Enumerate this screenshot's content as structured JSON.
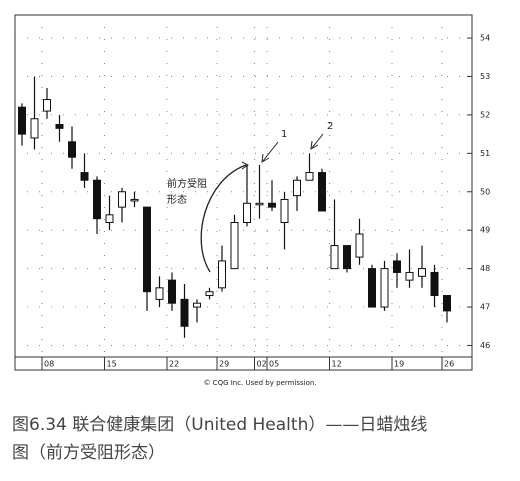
{
  "chart_data": {
    "type": "candlestick",
    "categories": [
      null,
      null,
      "08",
      null,
      null,
      null,
      null,
      "15",
      null,
      null,
      null,
      null,
      "22",
      null,
      null,
      null,
      "29",
      null,
      null,
      "02",
      "05",
      null,
      null,
      null,
      null,
      "12",
      null,
      null,
      null,
      null,
      "19",
      null,
      null,
      null,
      "26"
    ],
    "open": [
      52.2,
      51.4,
      52.1,
      51.75,
      51.3,
      50.5,
      50.3,
      49.2,
      49.6,
      49.8,
      49.6,
      47.2,
      47.7,
      47.2,
      47.0,
      47.3,
      47.5,
      48.0,
      49.2,
      49.7,
      49.7,
      49.2,
      49.9,
      50.3,
      50.5,
      48.0,
      48.6,
      48.3,
      48.0,
      47.0,
      48.2,
      47.7,
      47.8,
      47.9,
      47.3
    ],
    "high": [
      52.3,
      53.0,
      52.7,
      52.0,
      51.7,
      51.0,
      50.4,
      49.9,
      50.1,
      50.0,
      49.6,
      47.8,
      47.9,
      47.6,
      47.2,
      47.5,
      48.6,
      49.4,
      50.7,
      50.7,
      50.3,
      50.0,
      50.4,
      51.0,
      50.6,
      49.8,
      48.6,
      49.3,
      48.1,
      48.2,
      48.4,
      48.5,
      48.6,
      48.1,
      47.3
    ],
    "low": [
      51.2,
      51.1,
      51.9,
      51.3,
      50.6,
      50.1,
      48.9,
      49.0,
      49.2,
      49.6,
      46.9,
      47.0,
      46.9,
      46.2,
      46.6,
      47.2,
      47.4,
      48.0,
      49.1,
      49.3,
      49.5,
      48.5,
      49.5,
      50.3,
      49.5,
      48.0,
      47.9,
      48.1,
      47.0,
      46.9,
      47.5,
      47.5,
      47.5,
      47.0,
      46.6
    ],
    "close": [
      51.5,
      51.9,
      52.4,
      51.65,
      50.9,
      50.3,
      49.3,
      49.4,
      50.0,
      49.8,
      47.4,
      47.5,
      47.1,
      46.5,
      47.1,
      47.4,
      48.2,
      49.2,
      49.7,
      49.7,
      49.6,
      49.8,
      50.3,
      50.5,
      49.5,
      48.6,
      48.0,
      48.9,
      47.0,
      48.0,
      47.9,
      47.9,
      48.0,
      47.3,
      46.9
    ],
    "up_color": "#ffffff",
    "down_color": "#111111",
    "ylim": [
      45.7,
      54.6
    ],
    "yticks": [
      46,
      47,
      48,
      49,
      50,
      51,
      52,
      53,
      54
    ],
    "grid": true,
    "annotations": [
      "前方受阻",
      "形态",
      "1",
      "2"
    ],
    "credit": "© CQG Inc. Used by permission.",
    "caption": [
      "图6.34 联合健康集团（United Health）——日蜡烛线",
      "图（前方受阻形态）"
    ]
  }
}
